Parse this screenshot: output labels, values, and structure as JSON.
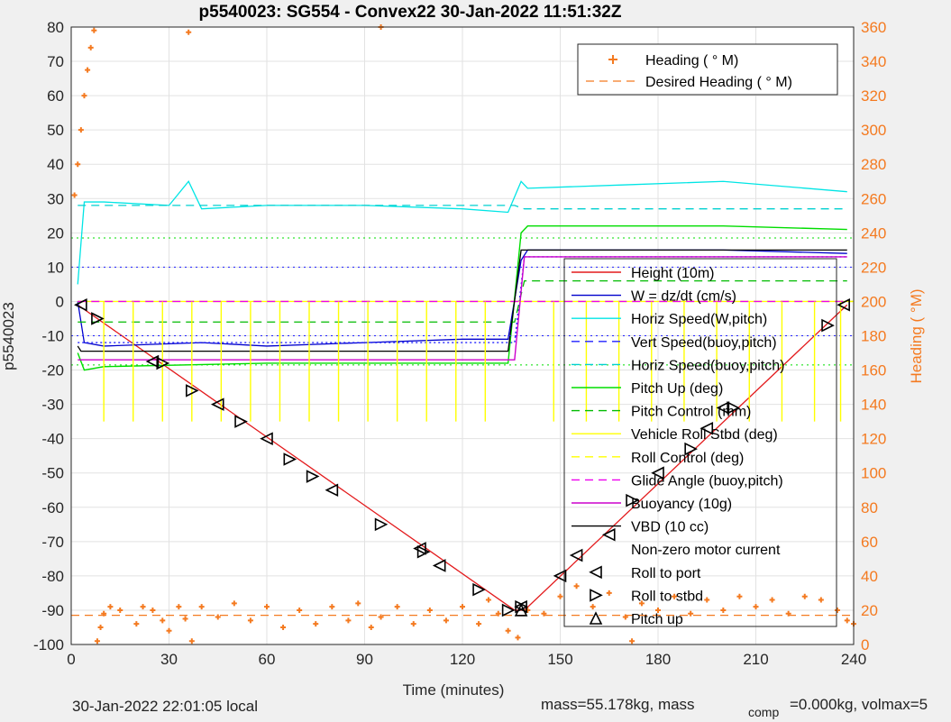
{
  "chart_data": {
    "type": "line",
    "title": "p5540023: SG554 - Convex22 30-Jan-2022 11:51:32Z",
    "xlabel": "Time (minutes)",
    "ylabel": "p5540023",
    "y2label": "Heading (  °M)",
    "xlim": [
      0,
      240
    ],
    "ylim": [
      -100,
      80
    ],
    "y2lim": [
      0,
      360
    ],
    "xticks": [
      "0",
      "30",
      "60",
      "90",
      "120",
      "150",
      "180",
      "210",
      "240"
    ],
    "yticks": [
      "80",
      "70",
      "60",
      "50",
      "40",
      "30",
      "20",
      "10",
      "0",
      "-10",
      "-20",
      "-30",
      "-40",
      "-50",
      "-60",
      "-70",
      "-80",
      "-90",
      "-100"
    ],
    "y2ticks": [
      "360",
      "340",
      "320",
      "300",
      "280",
      "260",
      "240",
      "220",
      "200",
      "180",
      "160",
      "140",
      "120",
      "100",
      "80",
      "60",
      "40",
      "20",
      "0"
    ],
    "grid": true,
    "legend_top": {
      "placement": "top-right",
      "entries": [
        "Heading (  ° M)",
        "Desired Heading (    ° M)"
      ]
    },
    "legend_main": {
      "placement": "right",
      "entries": [
        "Height (10m)",
        "W = dz/dt (cm/s)",
        "Horiz Speed(W,pitch)",
        "Vert Speed(buoy,pitch)",
        "Horiz Speed(buoy,pitch)",
        "Pitch Up (deg)",
        "Pitch Control (mm)",
        "Vehicle Roll Stbd (deg)",
        "Roll Control (deg)",
        "Glide Angle (buoy,pitch)",
        "Buoyancy (10g)",
        "VBD (10 cc)",
        "Non-zero motor current",
        "Roll to port",
        "Roll to stbd",
        "Pitch up"
      ]
    },
    "colors": {
      "height": "#e31a1c",
      "w": "#0000cc",
      "horiz_w": "#00e5e5",
      "vert_buoy": "#2020ff",
      "horiz_buoy": "#00d0d0",
      "pitch_up": "#00dd00",
      "pitch_ctrl": "#00bb00",
      "roll": "#ffff00",
      "roll_ctrl": "#ffff00",
      "glide": "#ee00ee",
      "buoyancy": "#cc00cc",
      "vbd": "#000000",
      "heading": "#f47a20",
      "axis2": "#f47a20"
    },
    "series": [
      {
        "name": "Height (10m)",
        "x": [
          2,
          136,
          139,
          238
        ],
        "y": [
          -1,
          -90,
          -90,
          -1
        ]
      },
      {
        "name": "W = dz/dt (cm/s)",
        "x": [
          2,
          4,
          10,
          40,
          60,
          90,
          120,
          134,
          138,
          140,
          170,
          200,
          238
        ],
        "y": [
          0,
          -12,
          -13,
          -12,
          -13,
          -12,
          -11,
          -11,
          12,
          15,
          15,
          15,
          14
        ]
      },
      {
        "name": "Horiz Speed(W,pitch)",
        "x": [
          2,
          4,
          10,
          30,
          36,
          40,
          60,
          90,
          120,
          134,
          138,
          140,
          170,
          200,
          238
        ],
        "y": [
          5,
          29,
          29,
          28,
          35,
          27,
          28,
          28,
          27,
          26,
          35,
          33,
          34,
          35,
          32
        ]
      },
      {
        "name": "Vert Speed(buoy,pitch)",
        "x": [
          2,
          136,
          139,
          238
        ],
        "y": [
          -12,
          -12,
          13,
          13
        ]
      },
      {
        "name": "Horiz Speed(buoy,pitch)",
        "x": [
          2,
          136,
          139,
          238
        ],
        "y": [
          28,
          28,
          27,
          27
        ]
      },
      {
        "name": "Pitch Up (deg)",
        "x": [
          2,
          4,
          10,
          60,
          120,
          134,
          138,
          140,
          170,
          200,
          238
        ],
        "y": [
          -15,
          -20,
          -19,
          -18,
          -18,
          -18,
          20,
          22,
          22,
          22,
          21
        ]
      },
      {
        "name": "Pitch Control (mm)",
        "x": [
          2,
          136,
          139,
          238
        ],
        "y": [
          -6,
          -6,
          6,
          6
        ]
      },
      {
        "name": "Vehicle Roll Stbd (deg)",
        "x": [
          2,
          240
        ],
        "y": [
          0,
          0
        ]
      },
      {
        "name": "Roll Control (deg)",
        "x": [
          2,
          240
        ],
        "y": [
          0,
          0
        ]
      },
      {
        "name": "Glide Angle (buoy,pitch)",
        "x": [
          2,
          136,
          139,
          238
        ],
        "y": [
          0,
          0,
          0,
          0
        ]
      },
      {
        "name": "Buoyancy (10g)",
        "x": [
          2,
          136,
          139,
          238
        ],
        "y": [
          -17,
          -17,
          13,
          13
        ]
      },
      {
        "name": "VBD (10 cc)",
        "x": [
          2,
          3,
          134,
          138,
          238
        ],
        "y": [
          -13,
          -14.5,
          -14.5,
          15,
          15
        ]
      }
    ],
    "roll_spikes_x": [
      10,
      19,
      28,
      37,
      46,
      55,
      64,
      73,
      82,
      91,
      100,
      109,
      118,
      127,
      148,
      158,
      168,
      178,
      188,
      198,
      208,
      218,
      228,
      236
    ],
    "roll_to_port_markers": {
      "x": [
        3,
        25,
        45,
        60,
        80,
        107,
        113,
        138,
        150,
        155,
        165,
        180,
        195,
        200,
        237
      ],
      "y": [
        -1,
        -17.5,
        -30,
        -40,
        -55,
        -72,
        -77,
        -89,
        -80,
        -74,
        -68,
        -50,
        -37,
        -31,
        -1
      ]
    },
    "roll_to_stbd_markers": {
      "x": [
        8,
        28,
        37,
        52,
        67,
        74,
        95,
        108,
        125,
        134,
        138,
        172,
        190,
        203,
        232
      ],
      "y": [
        -5,
        -18,
        -26,
        -35,
        -46,
        -51,
        -65,
        -73,
        -84,
        -90,
        -89,
        -58,
        -43,
        -31,
        -7
      ]
    },
    "pitch_up_markers": {
      "x": [
        138
      ],
      "y": [
        -90
      ]
    },
    "heading_line_deg": 17,
    "heading_deg": {
      "x": [
        1,
        2,
        3,
        4,
        5,
        6,
        7,
        36,
        95,
        8,
        9,
        10,
        12,
        15,
        20,
        22,
        25,
        28,
        30,
        33,
        35,
        37,
        40,
        45,
        50,
        55,
        60,
        65,
        70,
        75,
        80,
        85,
        88,
        92,
        95,
        100,
        105,
        110,
        115,
        120,
        125,
        128,
        131,
        134,
        137,
        140,
        145,
        150,
        155,
        160,
        165,
        170,
        172,
        175,
        180,
        185,
        190,
        195,
        200,
        205,
        210,
        215,
        220,
        225,
        230,
        235,
        238,
        240
      ],
      "y": [
        262,
        280,
        300,
        320,
        335,
        348,
        358,
        357,
        360,
        2,
        10,
        18,
        22,
        20,
        12,
        22,
        20,
        14,
        8,
        22,
        15,
        2,
        22,
        16,
        24,
        14,
        22,
        10,
        20,
        12,
        22,
        14,
        24,
        10,
        16,
        22,
        12,
        20,
        14,
        22,
        12,
        26,
        18,
        8,
        4,
        20,
        18,
        28,
        34,
        22,
        30,
        16,
        2,
        24,
        20,
        28,
        18,
        26,
        20,
        28,
        22,
        26,
        18,
        28,
        26,
        20,
        14,
        12
      ]
    }
  },
  "footer": {
    "local_time": "30-Jan-2022 22:01:05 local",
    "mass_text": "mass=55.178kg, mass",
    "comp_sub": "comp",
    "comp_text": "=0.000kg, volmax=5"
  }
}
